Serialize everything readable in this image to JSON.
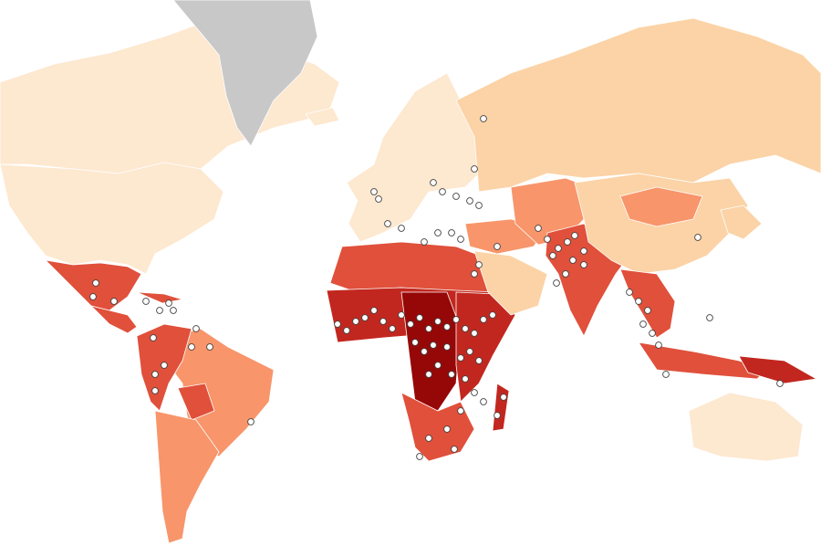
{
  "map": {
    "type": "choropleth-world",
    "legend": null,
    "color_scale": [
      "#fde8d0",
      "#fbd3a6",
      "#f8956a",
      "#e0503b",
      "#c2271f",
      "#960808"
    ],
    "no_data_color": "#c8c8c8",
    "marker_color": "#ffffff",
    "regions": [
      {
        "id": "canada",
        "level": 0
      },
      {
        "id": "usa",
        "level": 0
      },
      {
        "id": "greenland",
        "level": "no-data"
      },
      {
        "id": "iceland",
        "level": 0
      },
      {
        "id": "western-europe",
        "level": 0
      },
      {
        "id": "russia",
        "level": 1
      },
      {
        "id": "mexico",
        "level": 3
      },
      {
        "id": "central-america",
        "level": 3
      },
      {
        "id": "caribbean",
        "level": 3
      },
      {
        "id": "brazil",
        "level": 2
      },
      {
        "id": "andes",
        "level": 3
      },
      {
        "id": "bolivia",
        "level": 3
      },
      {
        "id": "argentina-chile",
        "level": 2
      },
      {
        "id": "north-africa",
        "level": 3
      },
      {
        "id": "sahel",
        "level": 4
      },
      {
        "id": "central-africa",
        "level": 5
      },
      {
        "id": "east-africa",
        "level": 4
      },
      {
        "id": "southern-africa",
        "level": 3
      },
      {
        "id": "madagascar",
        "level": 4
      },
      {
        "id": "middle-east",
        "level": 2
      },
      {
        "id": "arabia",
        "level": 1
      },
      {
        "id": "iran-central-asia",
        "level": 2
      },
      {
        "id": "south-asia",
        "level": 3
      },
      {
        "id": "china",
        "level": 1
      },
      {
        "id": "mongolia",
        "level": 2
      },
      {
        "id": "southeast-asia",
        "level": 3
      },
      {
        "id": "indonesia",
        "level": 3
      },
      {
        "id": "papua-new-guinea",
        "level": 4
      },
      {
        "id": "australia",
        "level": 0
      },
      {
        "id": "japan-korea",
        "level": 1
      }
    ],
    "marker_count_note": null
  }
}
